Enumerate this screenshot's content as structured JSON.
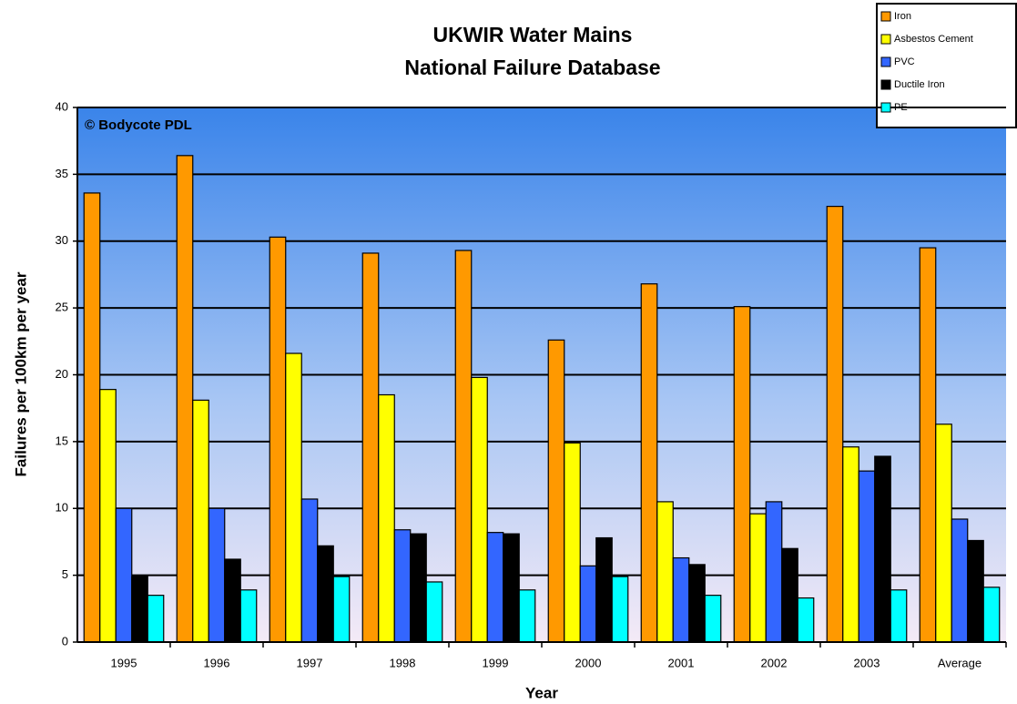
{
  "chart_data": {
    "type": "bar",
    "title": "UKWIR Water Mains",
    "subtitle": "National Failure Database",
    "annotation": "© Bodycote PDL",
    "xlabel": "Year",
    "ylabel": "Failures per 100km per year",
    "categories": [
      "1995",
      "1996",
      "1997",
      "1998",
      "1999",
      "2000",
      "2001",
      "2002",
      "2003",
      "Average"
    ],
    "series": [
      {
        "name": "Iron",
        "color": "#ff9900",
        "values": [
          33.6,
          36.4,
          30.3,
          29.1,
          29.3,
          22.6,
          26.8,
          25.1,
          32.6,
          29.5
        ]
      },
      {
        "name": "Asbestos Cement",
        "color": "#ffff00",
        "values": [
          18.9,
          18.1,
          21.6,
          18.5,
          19.8,
          14.9,
          10.5,
          9.6,
          14.6,
          16.3
        ]
      },
      {
        "name": "PVC",
        "color": "#3366ff",
        "values": [
          10.0,
          10.0,
          10.7,
          8.4,
          8.2,
          5.7,
          6.3,
          10.5,
          12.8,
          9.2
        ]
      },
      {
        "name": "Ductile Iron",
        "color": "#000000",
        "values": [
          4.9,
          6.2,
          7.2,
          8.1,
          8.1,
          7.8,
          5.8,
          7.0,
          13.9,
          7.6
        ]
      },
      {
        "name": "PE",
        "color": "#00ffff",
        "values": [
          3.5,
          3.9,
          4.9,
          4.5,
          3.9,
          4.9,
          3.5,
          3.3,
          3.9,
          4.1
        ]
      }
    ],
    "ylim": [
      0,
      40
    ],
    "yticks": [
      0,
      5,
      10,
      15,
      20,
      25,
      30,
      35,
      40
    ],
    "grid": true,
    "legend": "top-right"
  }
}
